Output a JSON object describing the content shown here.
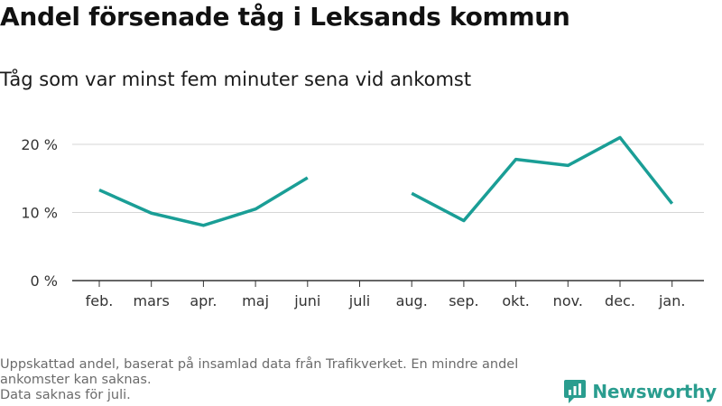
{
  "header": {
    "title": "Andel försenade tåg i Leksands kommun",
    "subtitle": "Tåg som var minst fem minuter sena vid ankomst"
  },
  "footer": {
    "note_lines": [
      "Uppskattad andel, baserat på insamlad data från Trafikverket. En mindre andel",
      "ankomster kan saknas.",
      "Data saknas för juli."
    ],
    "brand": "Newsworthy"
  },
  "colors": {
    "line": "#1a9e96",
    "grid": "#d6d6d6",
    "axis": "#333333",
    "brand": "#2a9d8f"
  },
  "chart_data": {
    "type": "line",
    "title": "Andel försenade tåg i Leksands kommun",
    "subtitle": "Tåg som var minst fem minuter sena vid ankomst",
    "xlabel": "",
    "ylabel": "",
    "categories": [
      "feb.",
      "mars",
      "apr.",
      "maj",
      "juni",
      "juli",
      "aug.",
      "sep.",
      "okt.",
      "nov.",
      "dec.",
      "jan."
    ],
    "y_ticks": [
      0,
      10,
      20
    ],
    "y_tick_labels": [
      "0 %",
      "10 %",
      "20 %"
    ],
    "ylim": [
      0,
      20
    ],
    "grid": true,
    "legend": "none",
    "series": [
      {
        "values": [
          13.3,
          9.9,
          8.1,
          10.5,
          15.1,
          null,
          12.8,
          8.8,
          17.8,
          16.9,
          21.0,
          11.3
        ]
      }
    ]
  }
}
